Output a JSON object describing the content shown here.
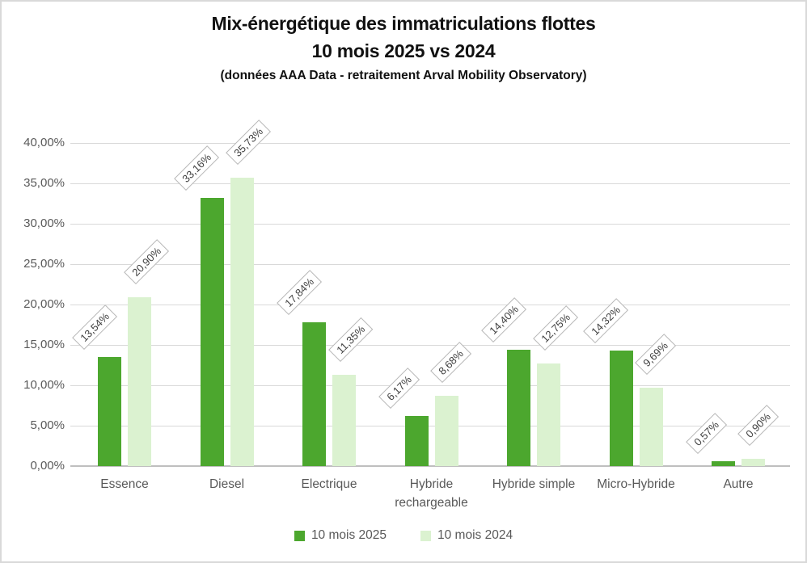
{
  "title": {
    "line1": "Mix-énergétique des immatriculations flottes",
    "line2": "10 mois 2025 vs 2024",
    "line3": "(données AAA Data - retraitement Arval Mobility Observatory)"
  },
  "chart_data": {
    "type": "bar",
    "categories": [
      "Essence",
      "Diesel",
      "Electrique",
      "Hybride rechargeable",
      "Hybride simple",
      "Micro-Hybride",
      "Autre"
    ],
    "series": [
      {
        "name": "10 mois 2025",
        "color": "#4CA72E",
        "values": [
          13.54,
          33.16,
          17.84,
          6.17,
          14.4,
          14.32,
          0.57
        ],
        "labels": [
          "13,54%",
          "33,16%",
          "17,84%",
          "6,17%",
          "14,40%",
          "14,32%",
          "0,57%"
        ]
      },
      {
        "name": "10 mois 2024",
        "color": "#DBF2D0",
        "values": [
          20.9,
          35.73,
          11.35,
          8.68,
          12.75,
          9.69,
          0.9
        ],
        "labels": [
          "20,90%",
          "35,73%",
          "11,35%",
          "8,68%",
          "12,75%",
          "9,69%",
          "0,90%"
        ]
      }
    ],
    "xlabel": "",
    "ylabel": "",
    "ylim": [
      0,
      40
    ],
    "ytick_step": 5,
    "yticks": [
      "40,00%",
      "35,00%",
      "30,00%",
      "25,00%",
      "20,00%",
      "15,00%",
      "10,00%",
      "5,00%",
      "0,00%"
    ],
    "grid": true,
    "legend_position": "bottom",
    "data_label_style": "rotated-box-45deg"
  },
  "colors": {
    "series_2025": "#4CA72E",
    "series_2024": "#DBF2D0",
    "gridline": "#d9d9d9",
    "axis_line": "#bfbfbf",
    "axis_text": "#595959",
    "label_text": "#404040",
    "label_border": "#b7b7b7",
    "title_text": "#111111",
    "frame_border": "#d9d9d9"
  }
}
